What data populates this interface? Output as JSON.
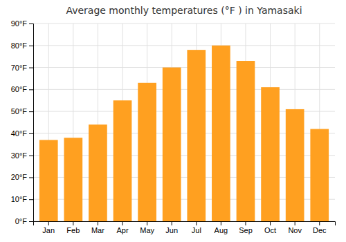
{
  "chart_data": {
    "type": "bar",
    "title": "Average monthly temperatures (°F ) in Yamasaki",
    "categories": [
      "Jan",
      "Feb",
      "Mar",
      "Apr",
      "May",
      "Jun",
      "Jul",
      "Aug",
      "Sep",
      "Oct",
      "Nov",
      "Dec"
    ],
    "values": [
      37,
      38,
      44,
      55,
      63,
      70,
      78,
      80,
      73,
      61,
      51,
      42
    ],
    "color": "#FFA020",
    "ylim": [
      0,
      90
    ],
    "yticks": [
      {
        "value": 0,
        "label": "0°F"
      },
      {
        "value": 10,
        "label": "10°F"
      },
      {
        "value": 20,
        "label": "20°F"
      },
      {
        "value": 30,
        "label": "30°F"
      },
      {
        "value": 40,
        "label": "40°F"
      },
      {
        "value": 50,
        "label": "50°F"
      },
      {
        "value": 60,
        "label": "60°F"
      },
      {
        "value": 70,
        "label": "70°F"
      },
      {
        "value": 80,
        "label": "80°F"
      },
      {
        "value": 90,
        "label": "90°F"
      }
    ],
    "grid": true
  }
}
